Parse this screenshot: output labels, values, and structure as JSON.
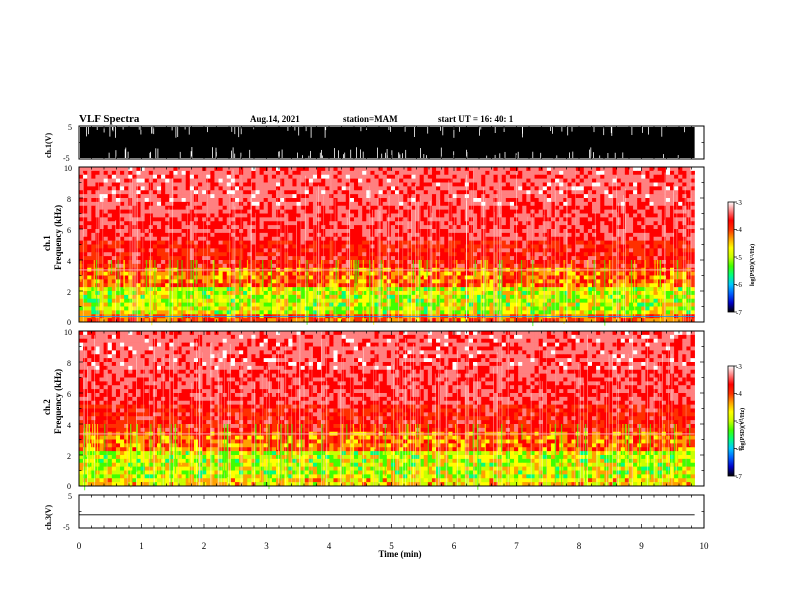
{
  "header": {
    "title": "VLF Spectra",
    "date": "Aug.14, 2021",
    "station": "station=MAM",
    "start": "start  UT  =   16: 40: 1"
  },
  "chart_data": {
    "type": "heatmap",
    "x_axis": {
      "label": "Time  (min)",
      "range": [
        0,
        10
      ],
      "ticks": [
        "0",
        "1",
        "2",
        "3",
        "4",
        "5",
        "6",
        "7",
        "8",
        "9",
        "10"
      ],
      "data_end": 9.85
    },
    "panels": [
      {
        "kind": "waveform",
        "ylabel": "ch.1(V)",
        "ylim": [
          -5,
          5
        ],
        "ticks": [
          "5",
          "-5"
        ],
        "description": "saturated broadband waveform, nearly full-scale"
      },
      {
        "kind": "spectrogram",
        "ylabel_top": "ch.1",
        "ylabel": "Frequency  (kHz)",
        "ylim": [
          0,
          10
        ],
        "ticks": [
          "0",
          "2",
          "4",
          "6",
          "8",
          "10"
        ],
        "colorbar": {
          "label": "log(PSD)(V²/Hz)",
          "ticks": [
            "-3",
            "-4",
            "-5",
            "-6",
            "-7"
          ],
          "range": [
            -7,
            -3
          ]
        }
      },
      {
        "kind": "spectrogram",
        "ylabel_top": "ch.2",
        "ylabel": "Frequency  (kHz)",
        "ylim": [
          0,
          10
        ],
        "ticks": [
          "0",
          "2",
          "4",
          "6",
          "8",
          "10"
        ],
        "colorbar": {
          "label": "log(PSD)(V²/Hz)",
          "ticks": [
            "-3",
            "-4",
            "-5",
            "-6",
            "-7"
          ],
          "range": [
            -7,
            -3
          ]
        }
      },
      {
        "kind": "waveform",
        "ylabel": "ch.3(V)",
        "ylim": [
          -5,
          5
        ],
        "ticks": [
          "5",
          "0",
          "-5"
        ],
        "description": "flat line near -1 V"
      }
    ],
    "colormap": [
      "#000000",
      "#0000c8",
      "#0060ff",
      "#00c8ff",
      "#00ff80",
      "#40ff00",
      "#c8ff00",
      "#ffff00",
      "#ffa000",
      "#ff3000",
      "#ff0000",
      "#ff8080",
      "#ffffff"
    ]
  }
}
